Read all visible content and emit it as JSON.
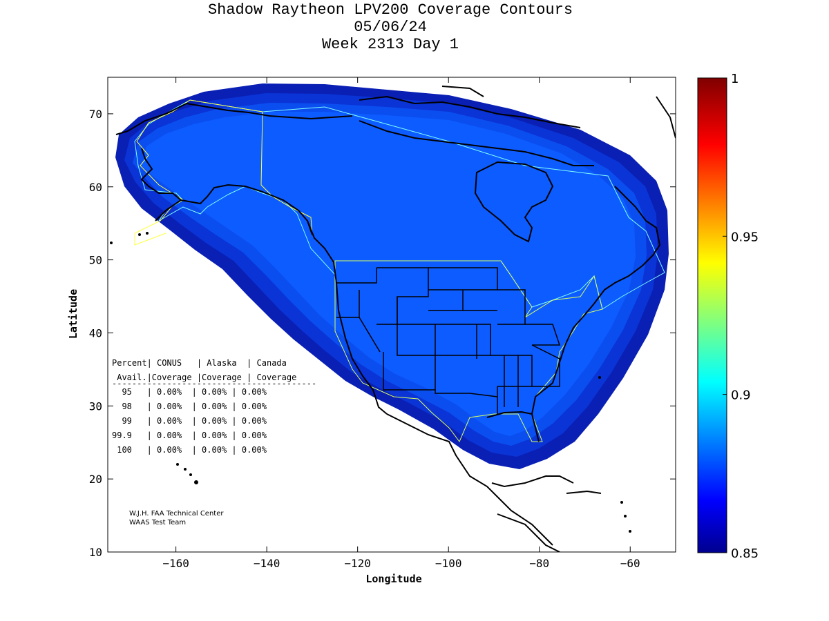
{
  "title": {
    "line1": "Shadow Raytheon LPV200 Coverage Contours",
    "line2": "05/06/24",
    "line3": "Week 2313 Day 1"
  },
  "axes": {
    "xlabel": "Longitude",
    "ylabel": "Latitude",
    "xlim": [
      -175,
      -50
    ],
    "ylim": [
      10,
      75
    ],
    "xticks": [
      -160,
      -140,
      -120,
      -100,
      -80,
      -60
    ],
    "yticks": [
      10,
      20,
      30,
      40,
      50,
      60,
      70
    ]
  },
  "colorbar": {
    "min": 0.85,
    "max": 1,
    "ticks": [
      "1",
      "0.95",
      "0.9",
      "0.85"
    ],
    "colormap": "jet"
  },
  "coverage_colors": {
    "outer": "#0a1fb4",
    "mid": "#0a34d6",
    "inner": "#0b4ef0",
    "core": "#0d5cff",
    "coastline": "#000000",
    "service_volume": "#7fffff",
    "alaska_boundary": "#ffff40"
  },
  "table": {
    "header1": "Percent| CONUS   | Alaska  | Canada",
    "header2": " Avail.|Coverage |Coverage | Coverage",
    "divider": "-----------------------------------------",
    "rows": [
      "  95   | 0.00%  | 0.00% | 0.00%",
      "  98   | 0.00%  | 0.00% | 0.00%",
      "  99   | 0.00%  | 0.00% | 0.00%",
      "99.9   | 0.00%  | 0.00% | 0.00%",
      " 100   | 0.00%  | 0.00% | 0.00%"
    ]
  },
  "credit": {
    "line1": "W.J.H. FAA Technical Center",
    "line2": "WAAS Test Team"
  }
}
